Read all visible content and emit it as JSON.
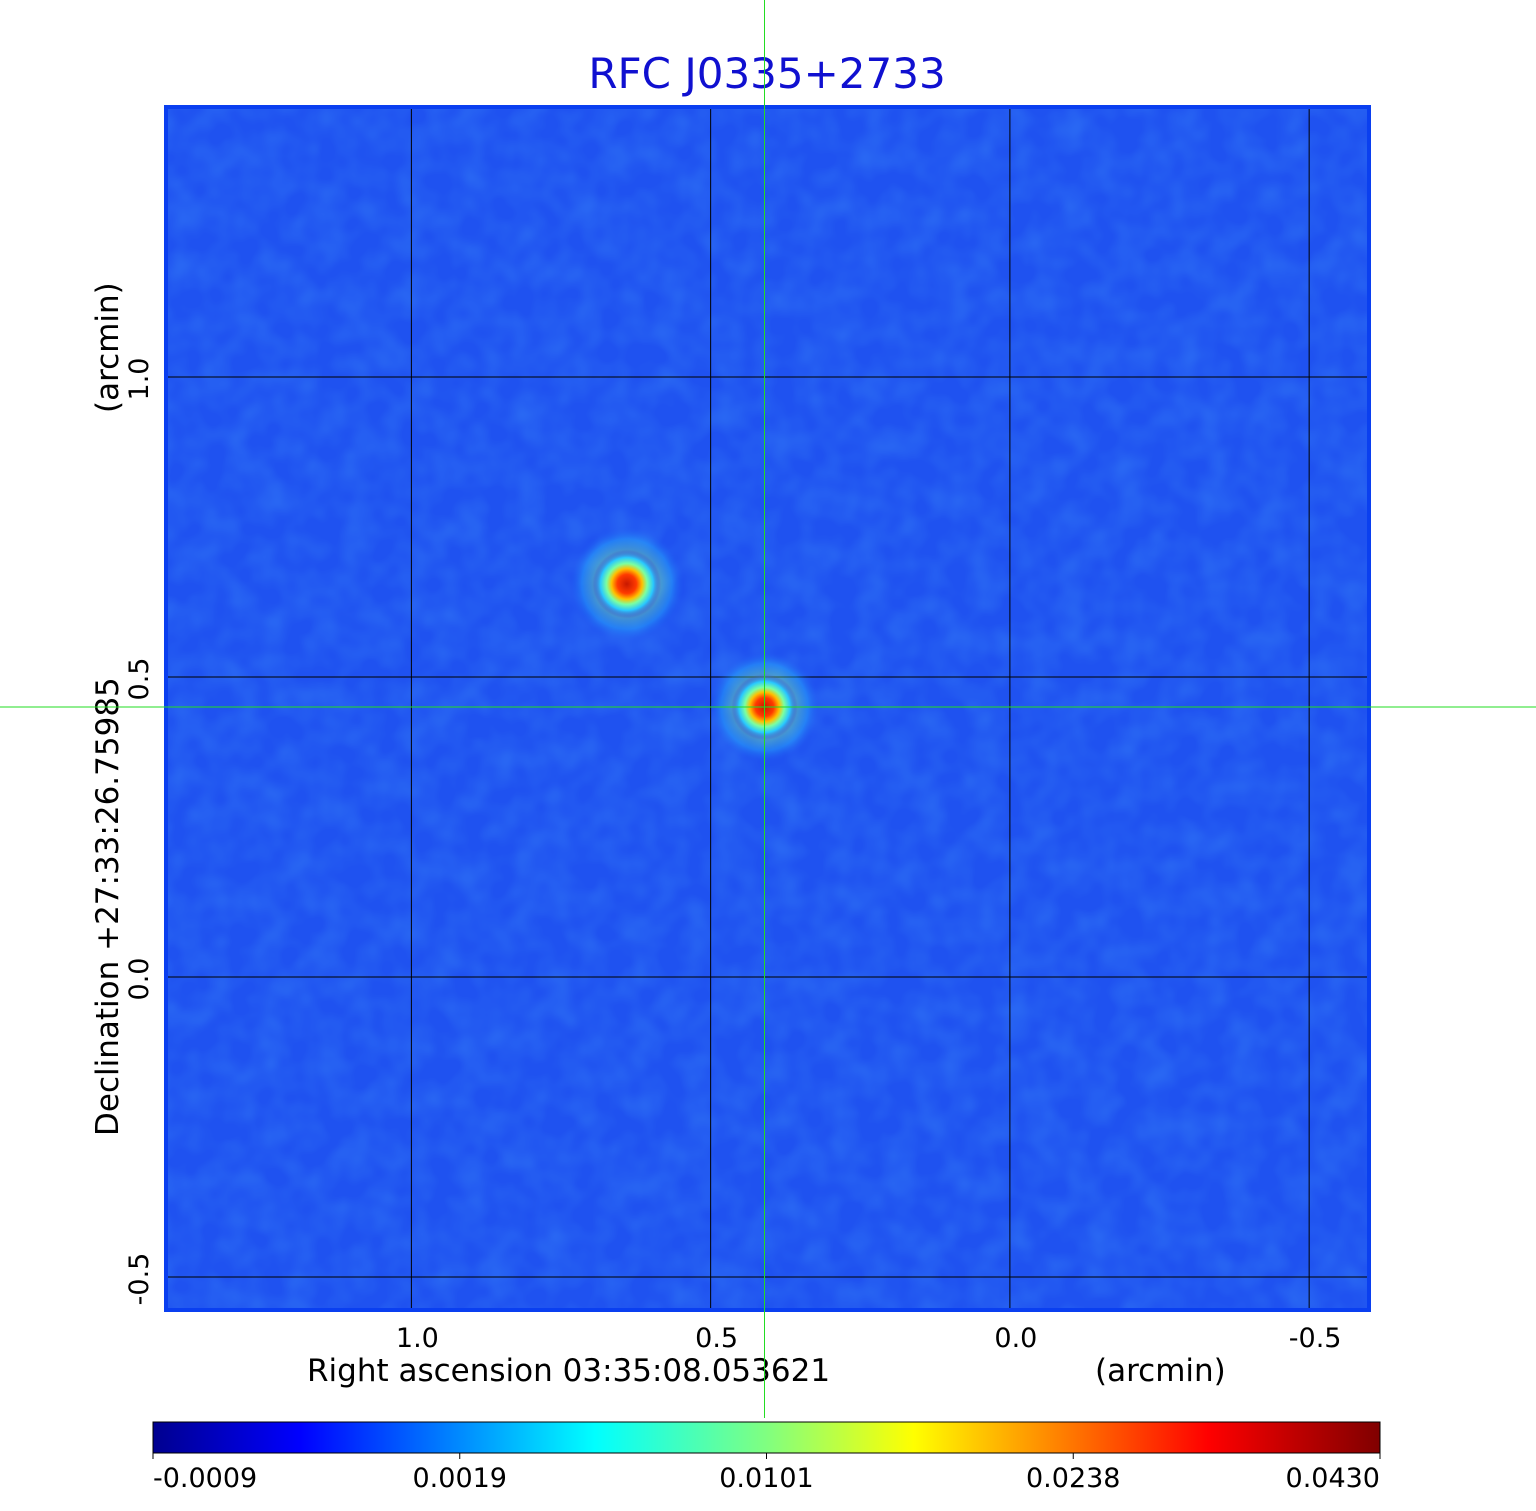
{
  "chart_data": {
    "type": "heatmap",
    "title": "RFC J0335+2733",
    "xlabel": "Right ascension  03:35:08.053621",
    "xlabel_unit": "(arcmin)",
    "ylabel": "Declination  +27:33:26.75985",
    "ylabel_unit": "(arcmin)",
    "x_ticks": [
      "1.0",
      "0.5",
      "0.0",
      "-0.5"
    ],
    "x_tick_values": [
      1.0,
      0.5,
      0.0,
      -0.5
    ],
    "y_ticks": [
      "-0.5",
      "0.0",
      "0.5",
      "1.0"
    ],
    "y_tick_values": [
      -0.5,
      0.0,
      0.5,
      1.0
    ],
    "xlim": [
      1.41,
      -0.6
    ],
    "ylim": [
      -0.555,
      1.45
    ],
    "grid": true,
    "colormap": "jet",
    "colorbar_ticks": [
      "-0.0009",
      "0.0019",
      "0.0101",
      "0.0238",
      "0.0430"
    ],
    "colorbar_range": [
      -0.0009,
      0.043
    ],
    "crosshair": {
      "x": 0.41,
      "y": 0.45,
      "color": "#22dd22"
    },
    "sources": [
      {
        "x": 0.64,
        "y": 0.655,
        "peak": 0.043
      },
      {
        "x": 0.41,
        "y": 0.45,
        "peak": 0.038
      }
    ],
    "background_color": "#1f52f0",
    "frame_color": "#0a3ff0"
  }
}
